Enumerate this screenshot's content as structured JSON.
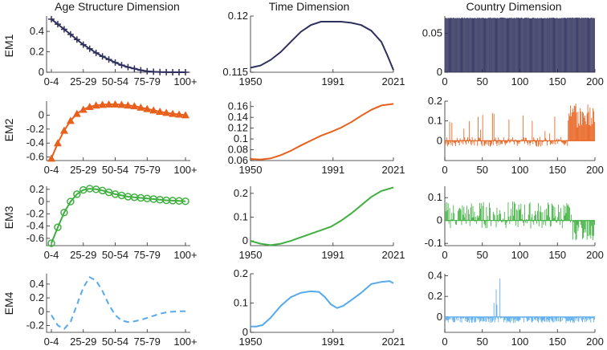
{
  "column_titles": [
    "Age Structure Dimension",
    "Time Dimension",
    "Country Dimension"
  ],
  "row_labels": [
    "EM1",
    "EM2",
    "EM3",
    "EM4"
  ],
  "colors": [
    "#2e2f5c",
    "#e8601c",
    "#3fb040",
    "#56aaec"
  ],
  "chart_data": [
    {
      "type": "line",
      "row": 0,
      "col": 0,
      "title": "Age Structure Dimension",
      "ylabel": "EM1",
      "marker": "plus",
      "line_style": "solid",
      "x_ticks": [
        "0-4",
        "25-29",
        "50-54",
        "75-79",
        "100+"
      ],
      "ylim": [
        0,
        0.55
      ],
      "y_ticks": [
        "0",
        "0.2",
        "0.4"
      ],
      "values": [
        0.52,
        0.47,
        0.42,
        0.37,
        0.32,
        0.27,
        0.23,
        0.19,
        0.155,
        0.125,
        0.095,
        0.07,
        0.05,
        0.035,
        0.02,
        0.01,
        0.005,
        0.002,
        0.001,
        0.0,
        0.0,
        0.0
      ]
    },
    {
      "type": "line",
      "row": 0,
      "col": 1,
      "title": "Time Dimension",
      "ylabel": "",
      "line_style": "solid",
      "x_ticks": [
        "1950",
        "1991",
        "2021"
      ],
      "xlim": [
        1950,
        2021
      ],
      "ylim": [
        0.115,
        0.12
      ],
      "y_ticks": [
        "0.115",
        "0.12"
      ],
      "x": [
        1950,
        1955,
        1960,
        1965,
        1970,
        1975,
        1980,
        1985,
        1990,
        1995,
        2000,
        2005,
        2010,
        2015,
        2018,
        2021
      ],
      "y": [
        0.1154,
        0.1156,
        0.1161,
        0.1168,
        0.1177,
        0.1186,
        0.1192,
        0.1195,
        0.1195,
        0.1195,
        0.1194,
        0.1192,
        0.1187,
        0.1177,
        0.1165,
        0.1152
      ]
    },
    {
      "type": "bar",
      "row": 0,
      "col": 2,
      "title": "Country Dimension",
      "ylabel": "",
      "n": 200,
      "x_ticks": [
        "0",
        "50",
        "100",
        "150",
        "200"
      ],
      "xlim": [
        0,
        200
      ],
      "ylim": [
        0,
        0.072
      ],
      "y_ticks": [
        "0",
        "0.05"
      ],
      "values_description_base": 0.07
    },
    {
      "type": "line",
      "row": 1,
      "col": 0,
      "ylabel": "EM2",
      "marker": "triangle",
      "line_style": "solid",
      "x_ticks": [
        "0-4",
        "25-29",
        "50-54",
        "75-79",
        "100+"
      ],
      "ylim": [
        -0.65,
        0.2
      ],
      "y_ticks": [
        "-0.6",
        "-0.4",
        "-0.2",
        "0"
      ],
      "values": [
        -0.62,
        -0.4,
        -0.22,
        -0.08,
        0.02,
        0.08,
        0.12,
        0.14,
        0.15,
        0.155,
        0.155,
        0.15,
        0.14,
        0.13,
        0.11,
        0.09,
        0.07,
        0.05,
        0.035,
        0.02,
        0.01,
        0.0
      ]
    },
    {
      "type": "line",
      "row": 1,
      "col": 1,
      "ylabel": "",
      "line_style": "solid",
      "x_ticks": [
        "1950",
        "1991",
        "2021"
      ],
      "xlim": [
        1950,
        2021
      ],
      "ylim": [
        0.06,
        0.17
      ],
      "y_ticks": [
        "0.06",
        "0.08",
        "0.1",
        "0.12",
        "0.14",
        "0.16"
      ],
      "x": [
        1950,
        1955,
        1960,
        1965,
        1970,
        1975,
        1980,
        1985,
        1990,
        1995,
        2000,
        2005,
        2010,
        2015,
        2021
      ],
      "y": [
        0.063,
        0.062,
        0.064,
        0.07,
        0.078,
        0.088,
        0.097,
        0.106,
        0.113,
        0.121,
        0.131,
        0.143,
        0.154,
        0.162,
        0.165
      ]
    },
    {
      "type": "bar",
      "row": 1,
      "col": 2,
      "ylabel": "",
      "n": 200,
      "x_ticks": [
        "0",
        "50",
        "100",
        "150",
        "200"
      ],
      "xlim": [
        0,
        200
      ],
      "ylim": [
        -0.1,
        0.2
      ],
      "y_ticks": [
        "0",
        "0.1",
        "0.2"
      ]
    },
    {
      "type": "line",
      "row": 2,
      "col": 0,
      "ylabel": "EM3",
      "marker": "circle",
      "line_style": "solid",
      "x_ticks": [
        "0-4",
        "25-29",
        "50-54",
        "75-79",
        "100+"
      ],
      "ylim": [
        -0.72,
        0.25
      ],
      "y_ticks": [
        "-0.6",
        "-0.4",
        "-0.2",
        "0",
        "0.2"
      ],
      "values": [
        -0.68,
        -0.42,
        -0.18,
        0.0,
        0.12,
        0.19,
        0.21,
        0.2,
        0.18,
        0.15,
        0.12,
        0.1,
        0.08,
        0.07,
        0.06,
        0.05,
        0.04,
        0.03,
        0.02,
        0.015,
        0.01,
        0.005
      ]
    },
    {
      "type": "line",
      "row": 2,
      "col": 1,
      "ylabel": "",
      "line_style": "solid",
      "x_ticks": [
        "1950",
        "1991",
        "2021"
      ],
      "xlim": [
        1950,
        2021
      ],
      "ylim": [
        -0.02,
        0.23
      ],
      "y_ticks": [
        "0",
        "0.1",
        "0.2"
      ],
      "x": [
        1950,
        1955,
        1960,
        1965,
        1970,
        1975,
        1980,
        1985,
        1990,
        1995,
        2000,
        2005,
        2010,
        2015,
        2021
      ],
      "y": [
        0.0,
        -0.012,
        -0.018,
        -0.012,
        0.0,
        0.015,
        0.03,
        0.045,
        0.06,
        0.085,
        0.115,
        0.15,
        0.185,
        0.21,
        0.225
      ]
    },
    {
      "type": "bar",
      "row": 2,
      "col": 2,
      "ylabel": "",
      "n": 200,
      "x_ticks": [
        "0",
        "50",
        "100",
        "150",
        "200"
      ],
      "xlim": [
        0,
        200
      ],
      "ylim": [
        -0.11,
        0.15
      ],
      "y_ticks": [
        "-0.1",
        "0",
        "0.1"
      ]
    },
    {
      "type": "line",
      "row": 3,
      "col": 0,
      "ylabel": "EM4",
      "line_style": "dashed",
      "x_ticks": [
        "0-4",
        "25-29",
        "50-54",
        "75-79",
        "100+"
      ],
      "ylim": [
        -0.3,
        0.55
      ],
      "y_ticks": [
        "-0.2",
        "0",
        "0.2",
        "0.4"
      ],
      "values": [
        -0.05,
        -0.2,
        -0.25,
        -0.15,
        0.1,
        0.35,
        0.5,
        0.45,
        0.3,
        0.1,
        -0.05,
        -0.13,
        -0.15,
        -0.14,
        -0.12,
        -0.09,
        -0.06,
        -0.03,
        -0.01,
        0.0,
        0.005,
        0.005
      ]
    },
    {
      "type": "line",
      "row": 3,
      "col": 1,
      "ylabel": "",
      "line_style": "solid",
      "x_ticks": [
        "1950",
        "1991",
        "2021"
      ],
      "xlim": [
        1950,
        2021
      ],
      "ylim": [
        0,
        0.2
      ],
      "y_ticks": [
        "0",
        "0.1",
        "0.2"
      ],
      "x": [
        1950,
        1953,
        1956,
        1960,
        1965,
        1970,
        1975,
        1980,
        1984,
        1987,
        1990,
        1993,
        1996,
        2000,
        2005,
        2010,
        2015,
        2019,
        2021
      ],
      "y": [
        0.02,
        0.02,
        0.025,
        0.05,
        0.09,
        0.12,
        0.135,
        0.14,
        0.138,
        0.12,
        0.095,
        0.083,
        0.09,
        0.11,
        0.135,
        0.165,
        0.172,
        0.175,
        0.168
      ]
    },
    {
      "type": "bar",
      "row": 3,
      "col": 2,
      "ylabel": "",
      "n": 200,
      "x_ticks": [
        "0",
        "50",
        "100",
        "150",
        "200"
      ],
      "xlim": [
        0,
        200
      ],
      "ylim": [
        -0.15,
        0.42
      ],
      "y_ticks": [
        "0",
        "0.2",
        "0.4"
      ]
    }
  ]
}
